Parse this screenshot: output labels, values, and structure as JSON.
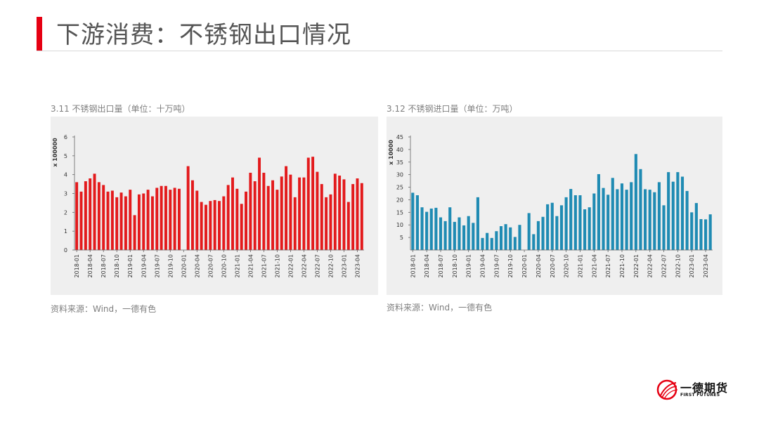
{
  "slide": {
    "title": "下游消费：不锈钢出口情况",
    "accent_color": "#e60012"
  },
  "logo": {
    "name_cn": "一德期货",
    "name_en": "FIRST FUTURES",
    "icon": "first-futures-logo-icon"
  },
  "chart_data": [
    {
      "type": "bar",
      "title": "3.11 不锈钢出口量（单位：十万吨）",
      "source": "资料来源：Wind，一德有色",
      "ylabel": "x 100000",
      "ylim": [
        0,
        6
      ],
      "yticks": [
        0,
        1,
        2,
        3,
        4,
        5,
        6
      ],
      "bar_color": "#e31a1c",
      "grid": false,
      "tick_labels": [
        "2018-01",
        "2018-04",
        "2018-07",
        "2018-10",
        "2019-01",
        "2019-04",
        "2019-07",
        "2019-10",
        "2020-01",
        "2020-04",
        "2020-07",
        "2020-10",
        "2021-01",
        "2021-04",
        "2021-07",
        "2021-10",
        "2022-01",
        "2022-04",
        "2022-07",
        "2022-10",
        "2023-01",
        "2023-04"
      ],
      "tick_step": 3,
      "x_start": "2018-01",
      "values": [
        3.6,
        3.1,
        3.65,
        3.8,
        4.05,
        3.6,
        3.45,
        3.1,
        3.15,
        2.8,
        3.05,
        2.85,
        3.2,
        1.85,
        2.95,
        3.0,
        3.2,
        2.85,
        3.3,
        3.4,
        3.4,
        3.2,
        3.3,
        3.25,
        null,
        4.45,
        3.7,
        3.15,
        2.55,
        2.4,
        2.6,
        2.65,
        2.6,
        2.85,
        3.45,
        3.85,
        3.25,
        2.45,
        3.1,
        4.1,
        3.65,
        4.9,
        4.1,
        3.4,
        3.7,
        3.2,
        3.9,
        4.45,
        4.0,
        2.8,
        3.85,
        3.85,
        4.9,
        4.95,
        4.15,
        3.5,
        2.8,
        2.95,
        4.05,
        3.95,
        3.75,
        2.55,
        3.5,
        3.8,
        3.55
      ]
    },
    {
      "type": "bar",
      "title": "3.12 不锈钢进口量（单位：万吨）",
      "source": "资料来源：Wind，一德有色",
      "ylabel": "x 10000",
      "ylim": [
        0,
        45
      ],
      "yticks": [
        5,
        10,
        15,
        20,
        25,
        30,
        35,
        40,
        45
      ],
      "bar_color": "#1f8bb3",
      "grid": false,
      "tick_labels": [
        "2018-01",
        "2018-04",
        "2018-07",
        "2018-10",
        "2019-01",
        "2019-04",
        "2019-07",
        "2019-10",
        "2020-01",
        "2020-04",
        "2020-07",
        "2020-10",
        "2021-01",
        "2021-04",
        "2021-07",
        "2021-10",
        "2022-01",
        "2022-04",
        "2022-07",
        "2022-10",
        "2023-01",
        "2023-04"
      ],
      "tick_step": 3,
      "x_start": "2018-01",
      "values": [
        22.8,
        21.8,
        17.0,
        15.2,
        16.5,
        16.8,
        13.0,
        11.5,
        17.0,
        11.2,
        13.0,
        9.8,
        13.5,
        10.8,
        21.0,
        4.8,
        6.8,
        4.8,
        7.5,
        9.5,
        10.3,
        9.0,
        5.2,
        10.0,
        null,
        14.7,
        6.3,
        11.5,
        13.2,
        18.2,
        18.8,
        13.5,
        17.8,
        21.0,
        24.3,
        21.8,
        21.8,
        16.2,
        17.0,
        22.5,
        30.2,
        24.7,
        22.0,
        28.7,
        24.2,
        26.5,
        24.0,
        27.0,
        38.2,
        32.2,
        24.2,
        24.0,
        23.0,
        27.0,
        17.8,
        31.0,
        27.2,
        31.0,
        29.2,
        23.5,
        15.0,
        18.7,
        12.3,
        12.2,
        14.2
      ]
    }
  ]
}
